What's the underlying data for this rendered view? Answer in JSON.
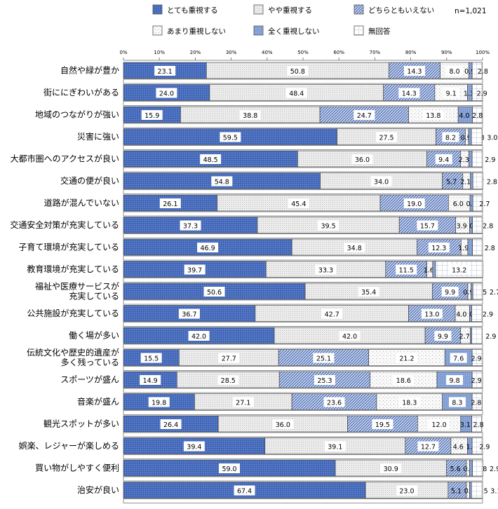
{
  "chart_data": {
    "type": "bar",
    "orientation": "horizontal",
    "stacked": true,
    "note": "n=1,021",
    "xlim": [
      0,
      100
    ],
    "x_ticks": [
      "0%",
      "10%",
      "20%",
      "30%",
      "40%",
      "50%",
      "60%",
      "70%",
      "80%",
      "90%",
      "100%"
    ],
    "legend_placement": "top",
    "series_names": [
      "とても重視する",
      "やや重視する",
      "どちらともいえない",
      "あまり重視しない",
      "全く重視しない",
      "無回答"
    ],
    "series_colors": [
      "#4a6fbf",
      "#e4e4e4",
      "#8aa6d8",
      "#f6f6f6",
      "#7f9bd2",
      "#ffffff"
    ],
    "categories": [
      "自然や緑が豊か",
      "街ににぎわいがある",
      "地域のつながりが強い",
      "災害に強い",
      "大都市圏へのアクセスが良い",
      "交通の便が良い",
      "道路が混んでいない",
      "交通安全対策が充実している",
      "子育て環境が充実している",
      "教育環境が充実している",
      "福祉や医療サービスが\n充実している",
      "公共施設が充実している",
      "働く場が多い",
      "伝統文化や歴史的遺産が\n多く残っている",
      "スポーツが盛ん",
      "音楽が盛ん",
      "観光スポットが多い",
      "娯楽、レジャーが楽しめる",
      "買い物がしやすく便利",
      "治安が良い"
    ],
    "values": [
      [
        23.1,
        50.8,
        14.3,
        8.0,
        0.9,
        2.8
      ],
      [
        24.0,
        48.4,
        14.3,
        9.1,
        1.3,
        2.9
      ],
      [
        15.9,
        38.8,
        24.7,
        13.8,
        4.0,
        2.8
      ],
      [
        59.5,
        27.5,
        8.2,
        0.9,
        0.8,
        3.0
      ],
      [
        48.5,
        36.0,
        9.4,
        2.3,
        0.9,
        2.9
      ],
      [
        54.8,
        34.0,
        5.7,
        2.1,
        0.7,
        2.8
      ],
      [
        26.1,
        45.4,
        19.0,
        6.0,
        0.8,
        2.7
      ],
      [
        37.3,
        39.5,
        15.7,
        3.9,
        0.8,
        2.8
      ],
      [
        46.9,
        34.8,
        12.3,
        1.9,
        1.3,
        2.8
      ],
      [
        39.7,
        33.3,
        11.5,
        1.6,
        0.8,
        13.2
      ],
      [
        50.6,
        35.4,
        9.9,
        0.9,
        0.5,
        2.7
      ],
      [
        36.7,
        42.7,
        13.0,
        4.0,
        0.6,
        2.9
      ],
      [
        42.0,
        42.0,
        9.9,
        2.7,
        0.4,
        2.9
      ],
      [
        15.5,
        27.7,
        25.1,
        21.2,
        7.6,
        2.9
      ],
      [
        14.9,
        28.5,
        25.3,
        18.6,
        9.8,
        2.9
      ],
      [
        19.8,
        27.1,
        23.6,
        18.3,
        8.3,
        2.8
      ],
      [
        26.4,
        36.0,
        19.5,
        12.0,
        3.1,
        2.8
      ],
      [
        39.4,
        39.1,
        12.7,
        4.6,
        1.3,
        2.9
      ],
      [
        59.0,
        30.9,
        5.6,
        0.9,
        0.8,
        2.9
      ],
      [
        67.4,
        23.0,
        5.1,
        0.9,
        0.5,
        3.1
      ]
    ]
  }
}
